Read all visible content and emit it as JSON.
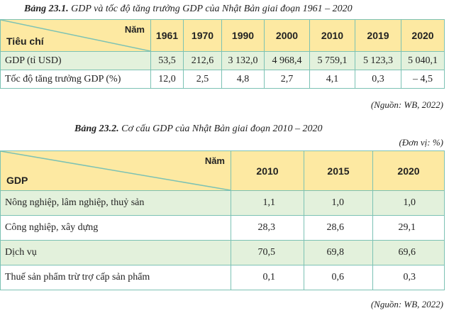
{
  "table1": {
    "caption_label": "Bảng 23.1.",
    "caption_text": "GDP và tốc độ tăng trưởng GDP của Nhật Bản giai đoạn 1961 – 2020",
    "corner_top": "Năm",
    "corner_bottom": "Tiêu chí",
    "columns": [
      "1961",
      "1970",
      "1990",
      "2000",
      "2010",
      "2019",
      "2020"
    ],
    "rows": [
      {
        "label": "GDP (tỉ USD)",
        "cells": [
          "53,5",
          "212,6",
          "3 132,0",
          "4 968,4",
          "5 759,1",
          "5 123,3",
          "5 040,1"
        ]
      },
      {
        "label": "Tốc độ tăng trưởng GDP (%)",
        "cells": [
          "12,0",
          "2,5",
          "4,8",
          "2,7",
          "4,1",
          "0,3",
          "– 4,5"
        ]
      }
    ],
    "source": "(Nguồn: WB, 2022)"
  },
  "table2": {
    "caption_label": "Bảng 23.2.",
    "caption_text": "Cơ cấu GDP của Nhật Bản giai đoạn 2010 – 2020",
    "unit": "(Đơn vị: %)",
    "corner_top": "Năm",
    "corner_bottom": "GDP",
    "columns": [
      "2010",
      "2015",
      "2020"
    ],
    "rows": [
      {
        "label": "Nông nghiệp, lâm nghiệp, thuỷ sản",
        "cells": [
          "1,1",
          "1,0",
          "1,0"
        ]
      },
      {
        "label": "Công nghiệp, xây dựng",
        "cells": [
          "28,3",
          "28,6",
          "29,1"
        ]
      },
      {
        "label": "Dịch vụ",
        "cells": [
          "70,5",
          "69,8",
          "69,6"
        ]
      },
      {
        "label": "Thuế sản phẩm trừ trợ cấp sản phẩm",
        "cells": [
          "0,1",
          "0,6",
          "0,3"
        ]
      }
    ],
    "source": "(Nguồn: WB, 2022)"
  }
}
